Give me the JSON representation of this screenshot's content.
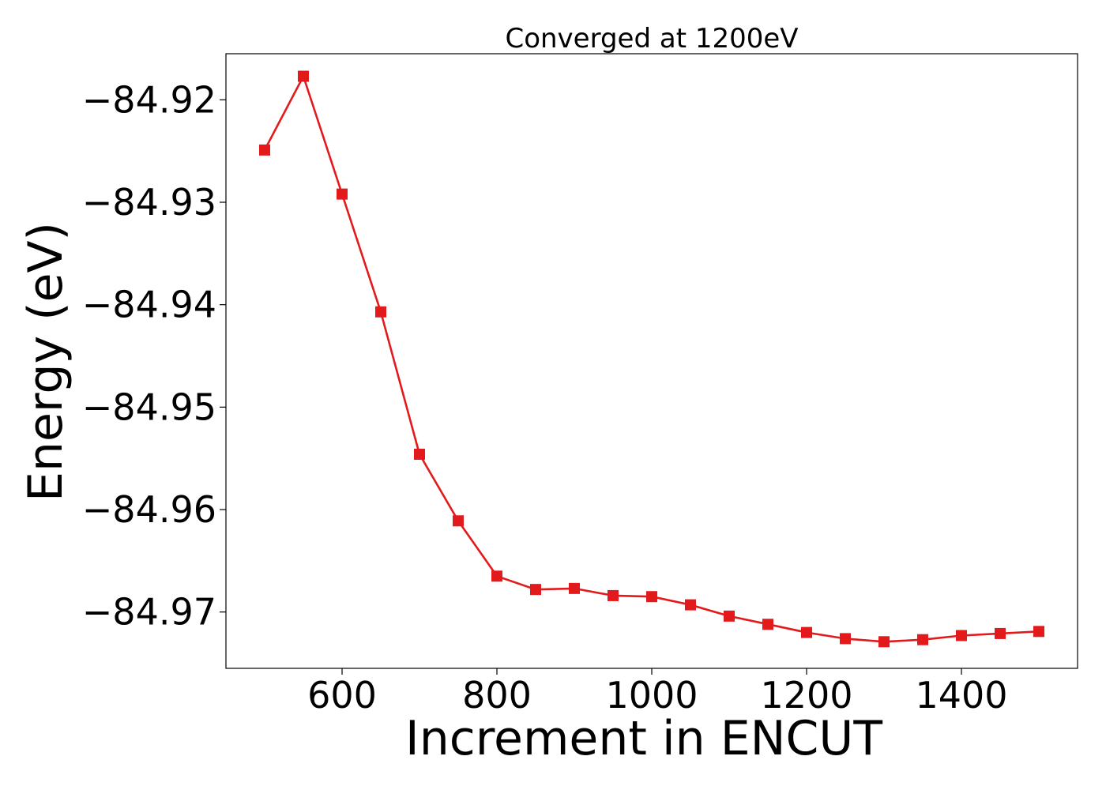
{
  "chart_data": {
    "type": "line",
    "title": "Converged at 1200eV",
    "xlabel": "Increment in ENCUT",
    "ylabel": "Energy (eV)",
    "xlim": [
      450,
      1550
    ],
    "ylim": [
      -84.9755,
      -84.9155
    ],
    "xticks": [
      600,
      800,
      1000,
      1200,
      1400
    ],
    "yticks": [
      -84.92,
      -84.93,
      -84.94,
      -84.95,
      -84.96,
      -84.97
    ],
    "ytick_labels": [
      "−84.92",
      "−84.93",
      "−84.94",
      "−84.95",
      "−84.96",
      "−84.97"
    ],
    "grid": false,
    "series": [
      {
        "color": "#e31a1c",
        "marker": "square",
        "x": [
          500,
          550,
          600,
          650,
          700,
          750,
          800,
          850,
          900,
          950,
          1000,
          1050,
          1100,
          1150,
          1200,
          1250,
          1300,
          1350,
          1400,
          1450,
          1500
        ],
        "y": [
          -84.9249,
          -84.9177,
          -84.9292,
          -84.9407,
          -84.9546,
          -84.9611,
          -84.9665,
          -84.9678,
          -84.9677,
          -84.9684,
          -84.9685,
          -84.9693,
          -84.9704,
          -84.9712,
          -84.972,
          -84.9726,
          -84.9729,
          -84.9727,
          -84.9723,
          -84.9721,
          -84.9719
        ]
      }
    ]
  }
}
